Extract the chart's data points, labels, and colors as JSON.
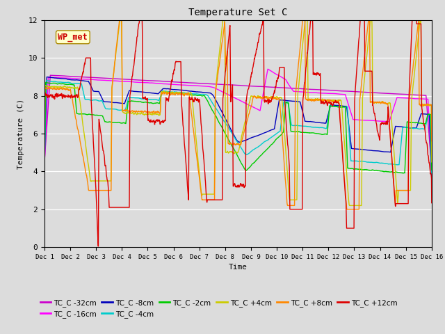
{
  "title": "Temperature Set C",
  "xlabel": "Time",
  "ylabel": "Temperature (C)",
  "ylim": [
    0,
    12
  ],
  "xlim": [
    0,
    15
  ],
  "xtick_labels": [
    "Dec 1",
    "Dec 2",
    "Dec 3",
    "Dec 4",
    "Dec 5",
    "Dec 6",
    "Dec 7",
    "Dec 8",
    "Dec 9",
    "Dec 10",
    "Dec 11",
    "Dec 12",
    "Dec 13",
    "Dec 14",
    "Dec 15",
    "Dec 16"
  ],
  "ytick_values": [
    0,
    2,
    4,
    6,
    8,
    10,
    12
  ],
  "background_color": "#dcdcdc",
  "wp_met_label": "WP_met",
  "wp_met_box_color": "#ffffcc",
  "wp_met_text_color": "#cc0000",
  "series": [
    {
      "label": "TC_C -32cm",
      "color": "#cc00cc",
      "lw": 1.0
    },
    {
      "label": "TC_C -16cm",
      "color": "#ff00ff",
      "lw": 1.0
    },
    {
      "label": "TC_C -8cm",
      "color": "#0000bb",
      "lw": 1.0
    },
    {
      "label": "TC_C -4cm",
      "color": "#00cccc",
      "lw": 1.0
    },
    {
      "label": "TC_C -2cm",
      "color": "#00cc00",
      "lw": 1.0
    },
    {
      "label": "TC_C +4cm",
      "color": "#cccc00",
      "lw": 1.0
    },
    {
      "label": "TC_C +8cm",
      "color": "#ff8800",
      "lw": 1.0
    },
    {
      "label": "TC_C +12cm",
      "color": "#dd0000",
      "lw": 1.0
    }
  ],
  "legend_ncol": 6,
  "legend_fontsize": 7.5
}
